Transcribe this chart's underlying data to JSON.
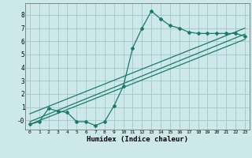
{
  "xlabel": "Humidex (Indice chaleur)",
  "bg_color": "#cce8e8",
  "grid_color": "#aacccc",
  "line_color": "#1a7a6e",
  "xlim": [
    -0.5,
    23.5
  ],
  "ylim": [
    -0.7,
    8.9
  ],
  "xticks": [
    0,
    1,
    2,
    3,
    4,
    5,
    6,
    7,
    8,
    9,
    10,
    11,
    12,
    13,
    14,
    15,
    16,
    17,
    18,
    19,
    20,
    21,
    22,
    23
  ],
  "yticks": [
    0,
    1,
    2,
    3,
    4,
    5,
    6,
    7,
    8
  ],
  "ytick_labels": [
    "-0",
    "1",
    "2",
    "3",
    "4",
    "5",
    "6",
    "7",
    "8"
  ],
  "zigzag_x": [
    0,
    1,
    2,
    3,
    4,
    5,
    6,
    7,
    8,
    9,
    10,
    11,
    12,
    13,
    14,
    15,
    16,
    17,
    18,
    19,
    20,
    21,
    22,
    23
  ],
  "zigzag_y": [
    -0.3,
    -0.1,
    0.9,
    0.7,
    0.6,
    -0.1,
    -0.1,
    -0.4,
    -0.1,
    1.1,
    2.6,
    5.5,
    7.0,
    8.3,
    7.7,
    7.2,
    7.0,
    6.7,
    6.6,
    6.6,
    6.6,
    6.6,
    6.6,
    6.4
  ],
  "line1_x": [
    0,
    23
  ],
  "line1_y": [
    -0.1,
    6.55
  ],
  "line2_x": [
    0,
    23
  ],
  "line2_y": [
    -0.3,
    6.15
  ],
  "line3_x": [
    0,
    23
  ],
  "line3_y": [
    0.5,
    7.0
  ]
}
